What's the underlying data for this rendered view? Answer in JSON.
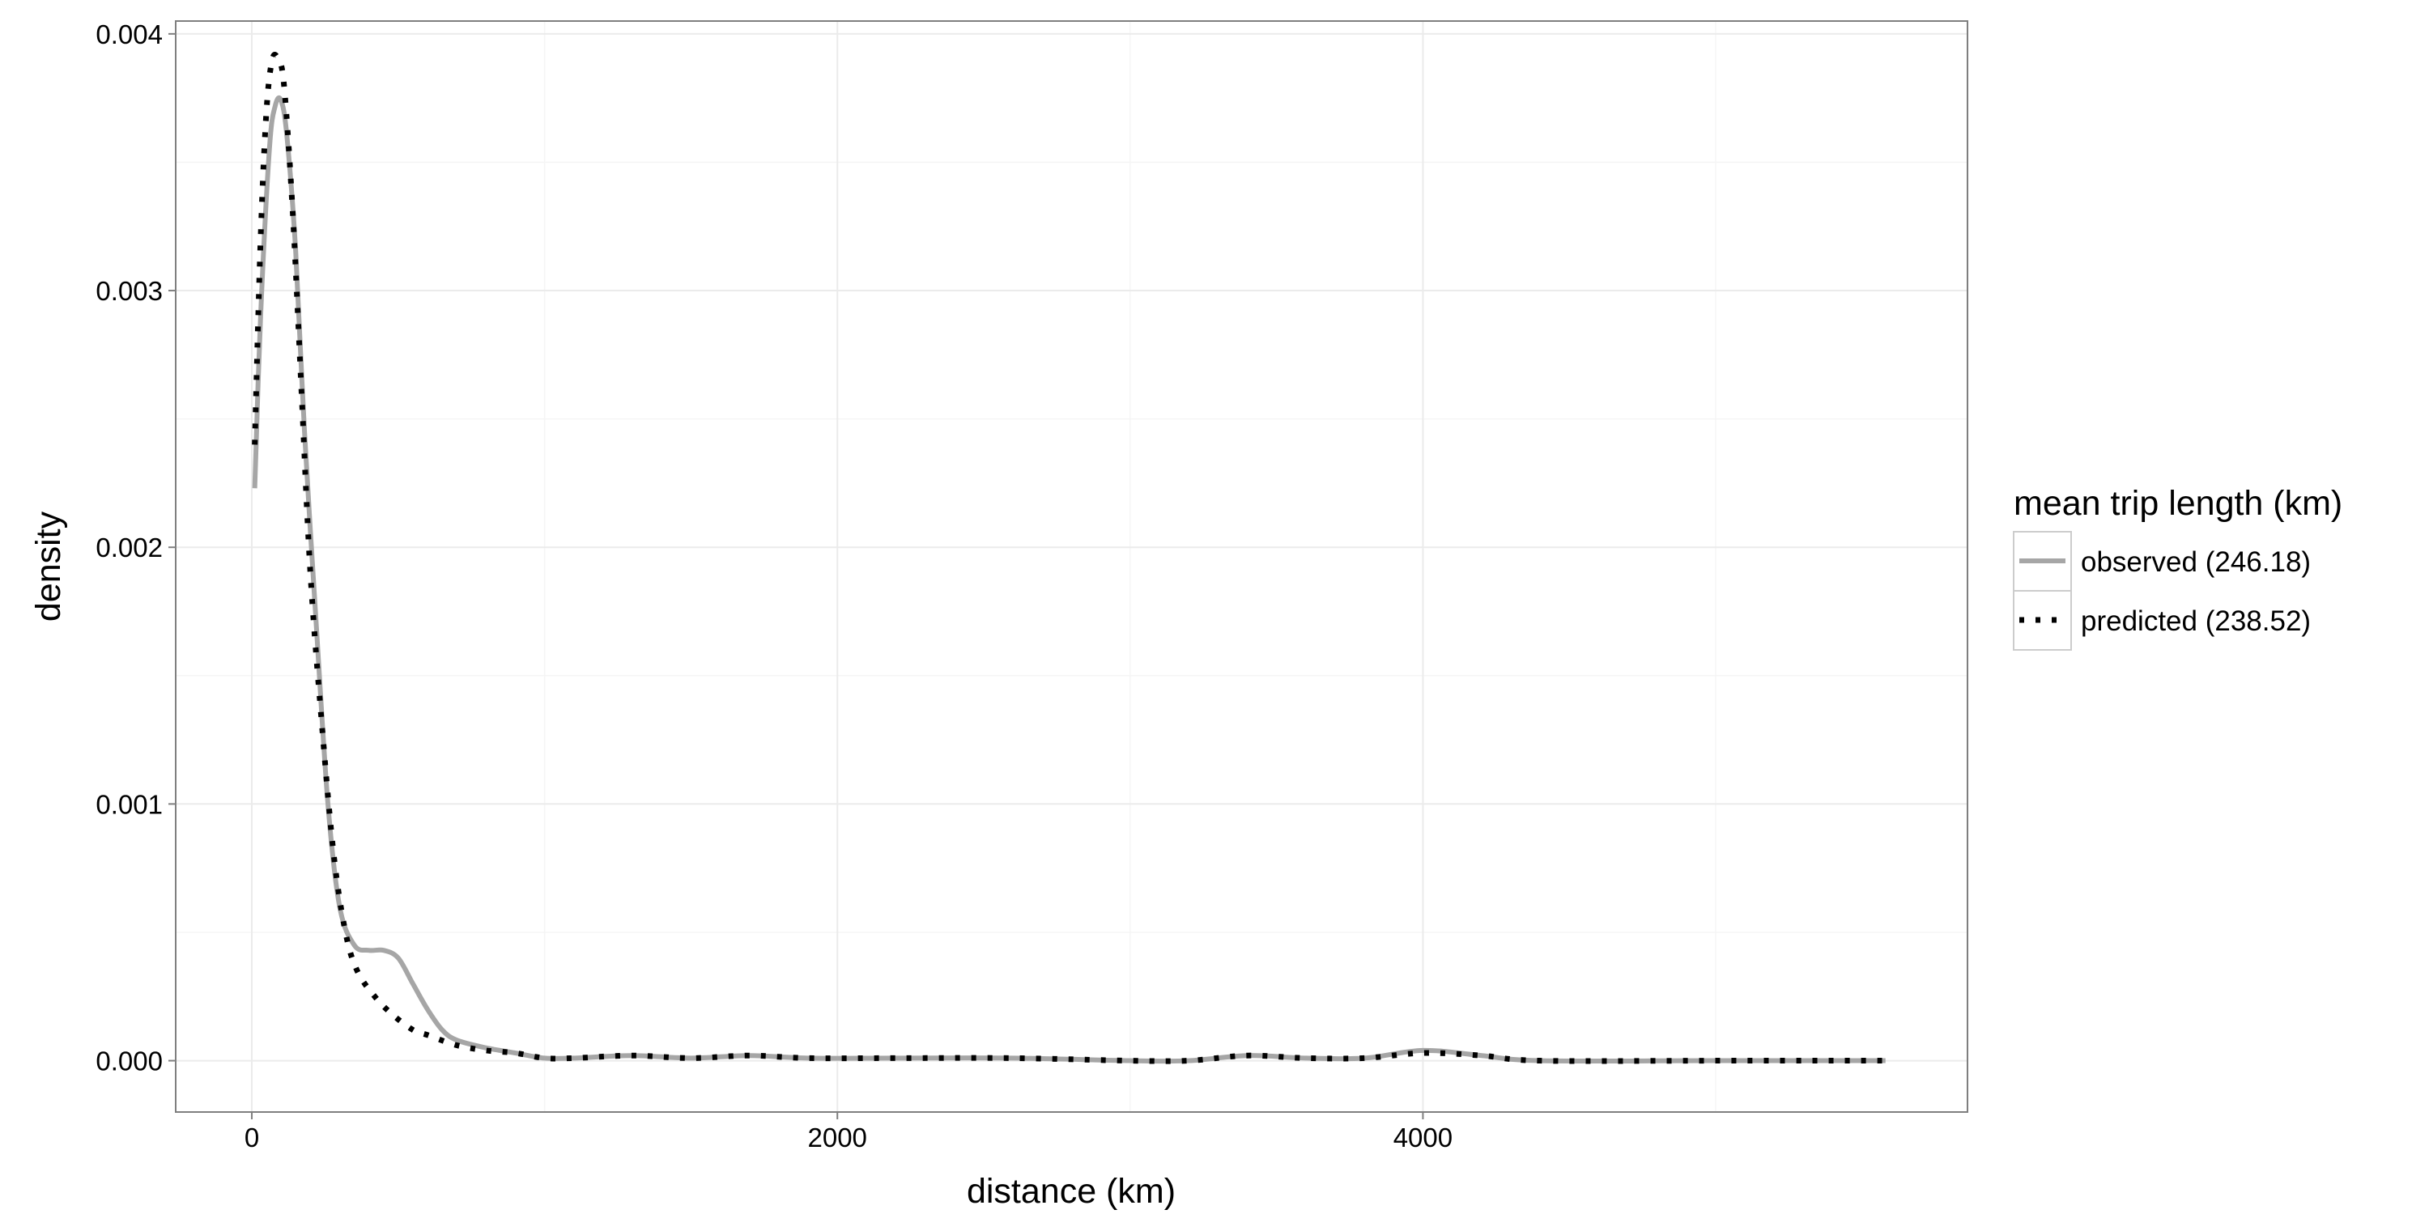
{
  "chart_data": {
    "type": "line",
    "title": "",
    "xlabel": "distance (km)",
    "ylabel": "density",
    "xlim": [
      -260,
      5860
    ],
    "ylim": [
      -0.0002,
      0.00405
    ],
    "x_ticks": [
      0,
      2000,
      4000
    ],
    "x_tick_labels": [
      "0",
      "2000",
      "4000"
    ],
    "y_ticks": [
      0.0,
      0.001,
      0.002,
      0.003,
      0.004
    ],
    "y_tick_labels": [
      "0.000",
      "0.001",
      "0.002",
      "0.003",
      "0.004"
    ],
    "grid": true,
    "legend": {
      "title": "mean trip length (km)",
      "position": "right"
    },
    "series": [
      {
        "name": "observed (246.18)",
        "color": "#a6a6a6",
        "style": "solid",
        "points": [
          [
            10,
            0.00223
          ],
          [
            30,
            0.0029
          ],
          [
            60,
            0.00355
          ],
          [
            80,
            0.00372
          ],
          [
            100,
            0.00374
          ],
          [
            120,
            0.0036
          ],
          [
            150,
            0.00315
          ],
          [
            180,
            0.00245
          ],
          [
            220,
            0.0017
          ],
          [
            260,
            0.001
          ],
          [
            300,
            0.0006
          ],
          [
            350,
            0.00045
          ],
          [
            400,
            0.00043
          ],
          [
            450,
            0.00043
          ],
          [
            500,
            0.0004
          ],
          [
            550,
            0.0003
          ],
          [
            600,
            0.0002
          ],
          [
            650,
            0.00012
          ],
          [
            700,
            8e-05
          ],
          [
            800,
            5e-05
          ],
          [
            900,
            3e-05
          ],
          [
            1000,
            1e-05
          ],
          [
            1100,
            1e-05
          ],
          [
            1300,
            2e-05
          ],
          [
            1500,
            1e-05
          ],
          [
            1700,
            2e-05
          ],
          [
            1900,
            1e-05
          ],
          [
            2200,
            1e-05
          ],
          [
            2600,
            1e-05
          ],
          [
            3000,
            0.0
          ],
          [
            3200,
            0.0
          ],
          [
            3400,
            2e-05
          ],
          [
            3600,
            1e-05
          ],
          [
            3800,
            1e-05
          ],
          [
            4000,
            4e-05
          ],
          [
            4200,
            2e-05
          ],
          [
            4400,
            0.0
          ],
          [
            5000,
            0.0
          ],
          [
            5580,
            0.0
          ]
        ]
      },
      {
        "name": "predicted (238.52)",
        "color": "#000000",
        "style": "dotted",
        "points": [
          [
            10,
            0.0024
          ],
          [
            30,
            0.0032
          ],
          [
            50,
            0.0037
          ],
          [
            70,
            0.0039
          ],
          [
            90,
            0.0039
          ],
          [
            110,
            0.0038
          ],
          [
            140,
            0.0033
          ],
          [
            170,
            0.0026
          ],
          [
            200,
            0.0019
          ],
          [
            240,
            0.0013
          ],
          [
            280,
            0.0008
          ],
          [
            320,
            0.0005
          ],
          [
            360,
            0.00035
          ],
          [
            420,
            0.00025
          ],
          [
            480,
            0.00018
          ],
          [
            550,
            0.00012
          ],
          [
            600,
            0.0001
          ],
          [
            700,
            6e-05
          ],
          [
            800,
            4e-05
          ],
          [
            900,
            3e-05
          ],
          [
            1000,
            1e-05
          ],
          [
            1100,
            1e-05
          ],
          [
            1300,
            2e-05
          ],
          [
            1500,
            1e-05
          ],
          [
            1700,
            2e-05
          ],
          [
            1900,
            1e-05
          ],
          [
            2200,
            1e-05
          ],
          [
            2600,
            1e-05
          ],
          [
            3000,
            0.0
          ],
          [
            3200,
            0.0
          ],
          [
            3400,
            2e-05
          ],
          [
            3600,
            1e-05
          ],
          [
            3800,
            1e-05
          ],
          [
            4000,
            3e-05
          ],
          [
            4200,
            2e-05
          ],
          [
            4400,
            0.0
          ],
          [
            5000,
            0.0
          ],
          [
            5580,
            0.0
          ]
        ]
      }
    ]
  }
}
